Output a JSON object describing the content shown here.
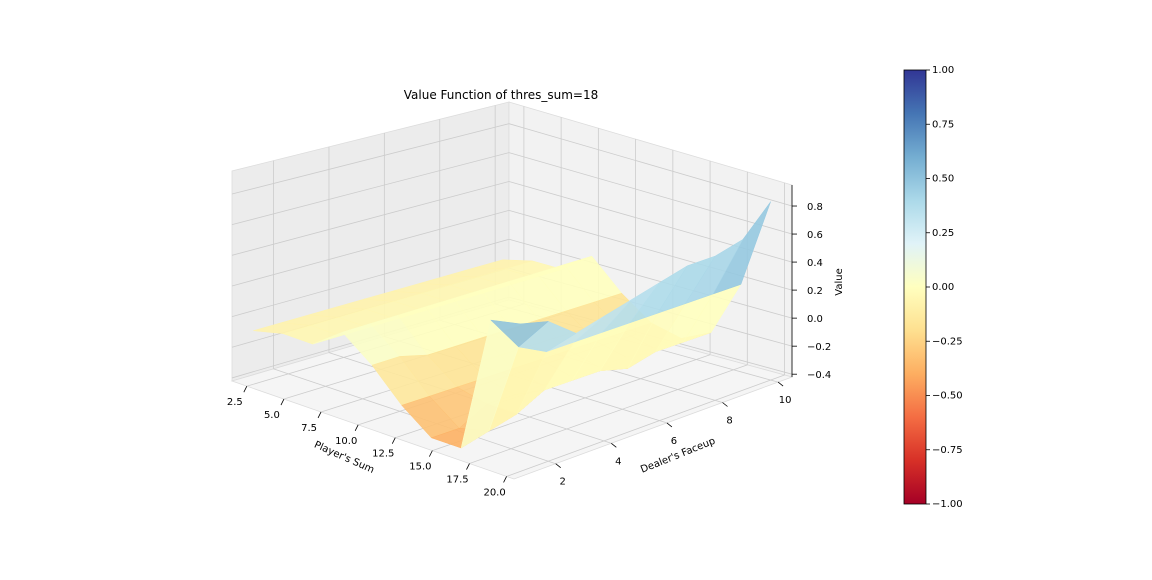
{
  "chart_data": {
    "type": "surface3d",
    "title": "Value Function of thres_sum=18",
    "xlabel": "Player's Sum",
    "ylabel": "Dealer's Faceup",
    "zlabel": "Value",
    "x": [
      2,
      4,
      6,
      8,
      10,
      12,
      14,
      16,
      18,
      20
    ],
    "y": [
      1,
      2,
      3,
      4,
      5,
      6,
      7,
      8,
      9,
      10
    ],
    "z": [
      [
        -0.1,
        -0.1,
        -0.1,
        -0.1,
        -0.1,
        -0.1,
        -0.1,
        -0.1,
        -0.1,
        -0.1
      ],
      [
        -0.05,
        -0.05,
        -0.05,
        -0.05,
        -0.05,
        -0.05,
        -0.05,
        -0.05,
        -0.05,
        -0.05
      ],
      [
        -0.05,
        -0.05,
        -0.05,
        -0.05,
        -0.05,
        -0.05,
        -0.05,
        -0.05,
        -0.05,
        -0.05
      ],
      [
        0.1,
        0.1,
        0.1,
        0.1,
        0.1,
        0.1,
        0.1,
        0.1,
        0.1,
        0.1
      ],
      [
        -0.05,
        -0.05,
        -0.1,
        -0.1,
        -0.1,
        -0.1,
        -0.1,
        -0.1,
        -0.1,
        -0.1
      ],
      [
        -0.25,
        -0.25,
        -0.25,
        -0.25,
        -0.25,
        -0.25,
        -0.25,
        -0.25,
        -0.25,
        -0.25
      ],
      [
        -0.4,
        -0.4,
        -0.3,
        -0.3,
        -0.3,
        -0.3,
        -0.3,
        -0.3,
        -0.3,
        -0.3
      ],
      [
        -0.4,
        -0.35,
        -0.3,
        -0.2,
        -0.2,
        -0.2,
        -0.25,
        -0.2,
        -0.2,
        -0.2
      ],
      [
        0.55,
        0.3,
        0.2,
        0.2,
        0.2,
        0.2,
        0.2,
        0.2,
        0.2,
        0.2
      ],
      [
        0.6,
        0.55,
        0.4,
        0.45,
        0.5,
        0.55,
        0.6,
        0.6,
        0.65,
        0.85
      ]
    ],
    "xticks": [
      "2.5",
      "5.0",
      "7.5",
      "10.0",
      "12.5",
      "15.0",
      "17.5",
      "20.0"
    ],
    "yticks": [
      "2",
      "4",
      "6",
      "8",
      "10"
    ],
    "zticks": [
      "−0.4",
      "−0.2",
      "0.0",
      "0.2",
      "0.4",
      "0.6",
      "0.8"
    ],
    "xlim": [
      1.5,
      20.5
    ],
    "ylim": [
      0.5,
      10.5
    ],
    "zlim": [
      -0.42,
      0.95
    ],
    "colormap": "RdYlBu",
    "clim": [
      -1,
      1
    ],
    "colorbar_ticks": [
      "1.00",
      "0.75",
      "0.50",
      "0.25",
      "0.00",
      "−0.25",
      "−0.50",
      "−0.75",
      "−1.00"
    ],
    "grid": true
  }
}
